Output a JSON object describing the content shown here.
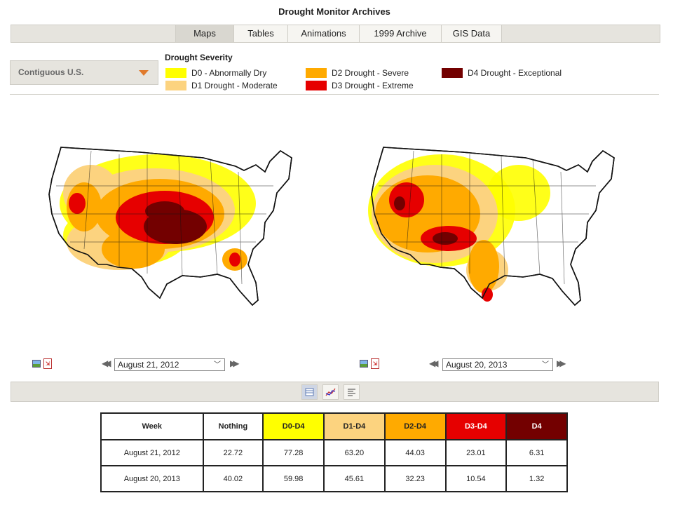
{
  "page": {
    "title": "Drought Monitor Archives"
  },
  "tabs": [
    {
      "label": "Maps",
      "active": true
    },
    {
      "label": "Tables",
      "active": false
    },
    {
      "label": "Animations",
      "active": false
    },
    {
      "label": "1999 Archive",
      "active": false
    },
    {
      "label": "GIS Data",
      "active": false
    }
  ],
  "region": {
    "selected": "Contiguous U.S."
  },
  "legend": {
    "title": "Drought Severity",
    "items": [
      {
        "label": "D0 - Abnormally Dry",
        "color": "#ffff00"
      },
      {
        "label": "D1 Drought - Moderate",
        "color": "#fcd37f"
      },
      {
        "label": "D2 Drought - Severe",
        "color": "#ffaa00"
      },
      {
        "label": "D3 Drought - Extreme",
        "color": "#e60000"
      },
      {
        "label": "D4 Drought - Exceptional",
        "color": "#730000"
      }
    ]
  },
  "maps": [
    {
      "date": "August 21, 2012"
    },
    {
      "date": "August 20, 2013"
    }
  ],
  "icons": {
    "image": "image-icon",
    "pdf": "pdf-icon",
    "prev": "double-left-arrow-icon",
    "next": "double-right-arrow-icon",
    "table_view": "table-view-icon",
    "chart_view": "chart-view-icon",
    "text_view": "text-view-icon"
  },
  "table": {
    "headers": [
      "Week",
      "Nothing",
      "D0-D4",
      "D1-D4",
      "D2-D4",
      "D3-D4",
      "D4"
    ],
    "header_colors": [
      "#ffffff",
      "#ffffff",
      "#ffff00",
      "#fcd37f",
      "#ffaa00",
      "#e60000",
      "#730000"
    ],
    "rows": [
      [
        "August 21, 2012",
        "22.72",
        "77.28",
        "63.20",
        "44.03",
        "23.01",
        "6.31"
      ],
      [
        "August 20, 2013",
        "40.02",
        "59.98",
        "45.61",
        "32.23",
        "10.54",
        "1.32"
      ]
    ]
  }
}
